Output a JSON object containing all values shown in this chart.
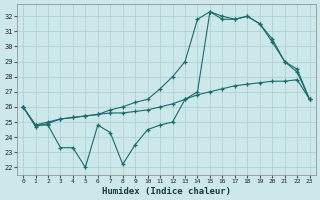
{
  "xlabel": "Humidex (Indice chaleur)",
  "ylabel": "",
  "background_color": "#cce8ea",
  "grid_color": "#aacdd0",
  "line_color": "#1a6b6b",
  "xlim": [
    -0.5,
    23.5
  ],
  "ylim": [
    21.5,
    32.8
  ],
  "xticks": [
    0,
    1,
    2,
    3,
    4,
    5,
    6,
    7,
    8,
    9,
    10,
    11,
    12,
    13,
    14,
    15,
    16,
    17,
    18,
    19,
    20,
    21,
    22,
    23
  ],
  "yticks": [
    22,
    23,
    24,
    25,
    26,
    27,
    28,
    29,
    30,
    31,
    32
  ],
  "line1_jagged": {
    "x": [
      0,
      1,
      2,
      3,
      4,
      5,
      6,
      7,
      8,
      9,
      10,
      11,
      12,
      13,
      14,
      15,
      16,
      17,
      18,
      19,
      20,
      21,
      22,
      23
    ],
    "y": [
      26.0,
      24.8,
      24.8,
      23.3,
      23.3,
      22.0,
      24.8,
      24.3,
      22.2,
      23.5,
      24.5,
      24.8,
      25.0,
      26.5,
      27.0,
      32.3,
      32.0,
      31.8,
      32.0,
      31.5,
      30.3,
      29.0,
      28.3,
      26.5
    ]
  },
  "line2_smooth": {
    "x": [
      0,
      1,
      2,
      3,
      4,
      5,
      6,
      7,
      8,
      9,
      10,
      11,
      12,
      13,
      14,
      15,
      16,
      17,
      18,
      19,
      20,
      21,
      22,
      23
    ],
    "y": [
      26.0,
      24.7,
      24.9,
      25.2,
      25.3,
      25.4,
      25.5,
      25.6,
      25.6,
      25.7,
      25.8,
      26.0,
      26.2,
      26.5,
      26.8,
      27.0,
      27.2,
      27.4,
      27.5,
      27.6,
      27.7,
      27.7,
      27.8,
      26.5
    ]
  },
  "line3_main": {
    "x": [
      0,
      1,
      2,
      3,
      4,
      5,
      6,
      7,
      8,
      9,
      10,
      11,
      12,
      13,
      14,
      15,
      16,
      17,
      18,
      19,
      20,
      21,
      22,
      23
    ],
    "y": [
      26.0,
      24.8,
      25.0,
      25.2,
      25.3,
      25.4,
      25.5,
      25.8,
      26.0,
      26.3,
      26.5,
      27.2,
      28.0,
      29.0,
      31.8,
      32.3,
      31.8,
      31.8,
      32.0,
      31.5,
      30.5,
      29.0,
      28.5,
      26.5
    ]
  }
}
